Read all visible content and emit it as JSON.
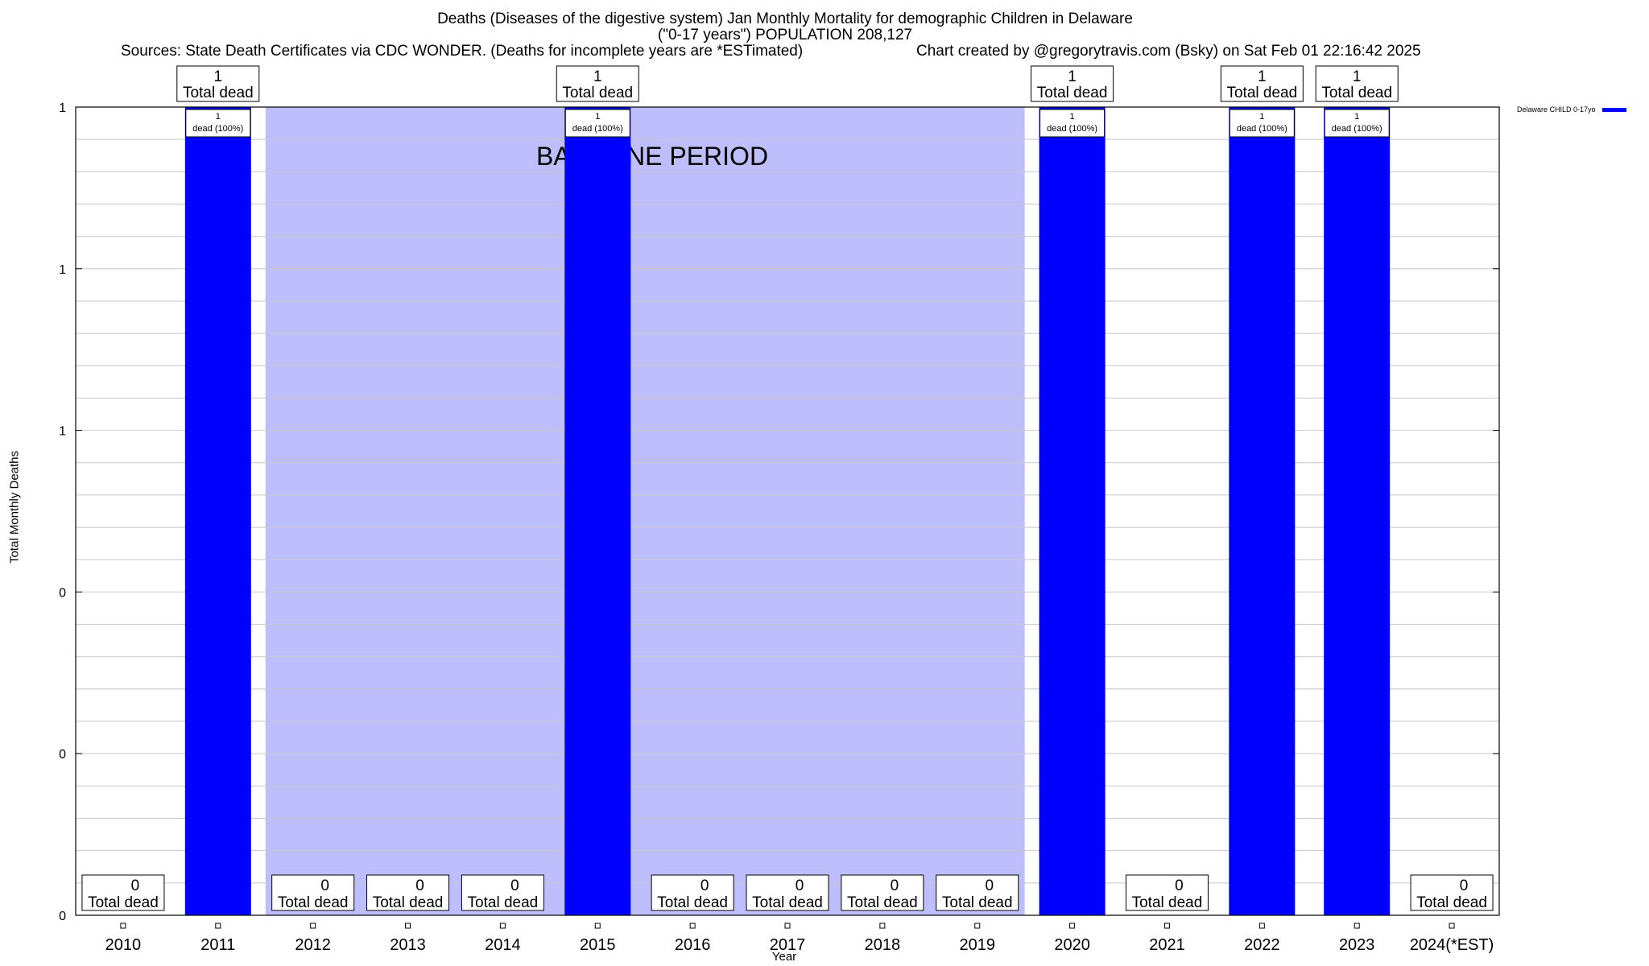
{
  "header": {
    "title_line1": "Deaths (Diseases of the digestive system) Jan Monthly Mortality for demographic Children in Delaware",
    "title_line2": "(\"0-17 years\") POPULATION 208,127",
    "sources": "Sources: State Death Certificates via CDC WONDER. (Deaths for incomplete years are *ESTimated)",
    "credit": "Chart created by @gregorytravis.com (Bsky) on Sat Feb 01 22:16:42 2025"
  },
  "legend": {
    "label": "Delaware CHILD 0-17yo",
    "color": "#0000ff"
  },
  "colors": {
    "bar": "#0000ff",
    "baseline": "#bebefc",
    "grid": "#c8c8c8"
  },
  "chart_data": {
    "type": "bar",
    "title": "Deaths (Diseases of the digestive system) Jan Monthly Mortality for demographic Children in Delaware",
    "xlabel": "Year",
    "ylabel": "Total Monthly Deaths",
    "ylim": [
      0,
      1
    ],
    "y_tick_labels": [
      "0",
      "0",
      "0",
      "1",
      "1",
      "1"
    ],
    "grid": true,
    "legend_position": "top-right",
    "categories": [
      "2010",
      "2011",
      "2012",
      "2013",
      "2014",
      "2015",
      "2016",
      "2017",
      "2018",
      "2019",
      "2020",
      "2021",
      "2022",
      "2023",
      "2024(*EST)"
    ],
    "series": [
      {
        "name": "Delaware CHILD 0-17yo",
        "values": [
          0,
          1,
          0,
          0,
          0,
          1,
          0,
          0,
          0,
          0,
          1,
          0,
          1,
          1,
          0
        ]
      }
    ],
    "total_label_text": "Total dead",
    "inner_label_text": "dead (100%)",
    "baseline_period": {
      "label": "BASELINE PERIOD",
      "start": "2012",
      "end": "2019"
    }
  }
}
